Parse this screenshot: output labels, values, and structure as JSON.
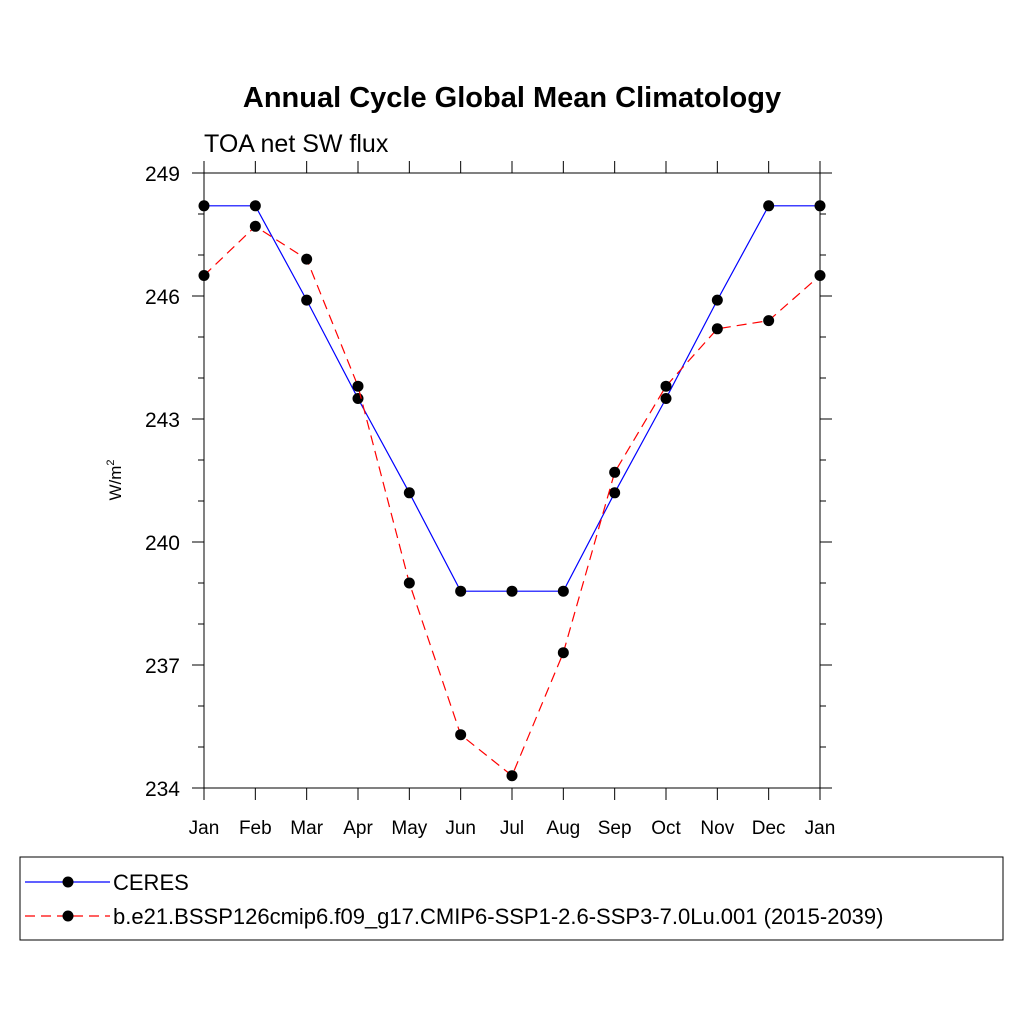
{
  "chart_data": {
    "type": "line",
    "title": "Annual Cycle Global Mean Climatology",
    "subtitle": "TOA net SW flux",
    "ylabel": "W/m",
    "ylabel_superscript": "2",
    "xlabel": "",
    "categories": [
      "Jan",
      "Feb",
      "Mar",
      "Apr",
      "May",
      "Jun",
      "Jul",
      "Aug",
      "Sep",
      "Oct",
      "Nov",
      "Dec",
      "Jan"
    ],
    "ylim": [
      234,
      249
    ],
    "yticks": [
      234,
      237,
      240,
      243,
      246,
      249
    ],
    "grid": false,
    "legend_position": "bottom",
    "series": [
      {
        "name": "CERES",
        "color": "#0000ff",
        "dash": "solid",
        "values": [
          248.2,
          248.2,
          245.9,
          243.5,
          241.2,
          238.8,
          238.8,
          238.8,
          241.2,
          243.5,
          245.9,
          248.2,
          248.2
        ]
      },
      {
        "name": "b.e21.BSSP126cmip6.f09_g17.CMIP6-SSP1-2.6-SSP3-7.0Lu.001 (2015-2039)",
        "color": "#ff0000",
        "dash": "dashed",
        "values": [
          246.5,
          247.7,
          246.9,
          243.8,
          239.0,
          235.3,
          234.3,
          237.3,
          241.7,
          243.8,
          245.2,
          245.4,
          246.5
        ]
      }
    ]
  }
}
